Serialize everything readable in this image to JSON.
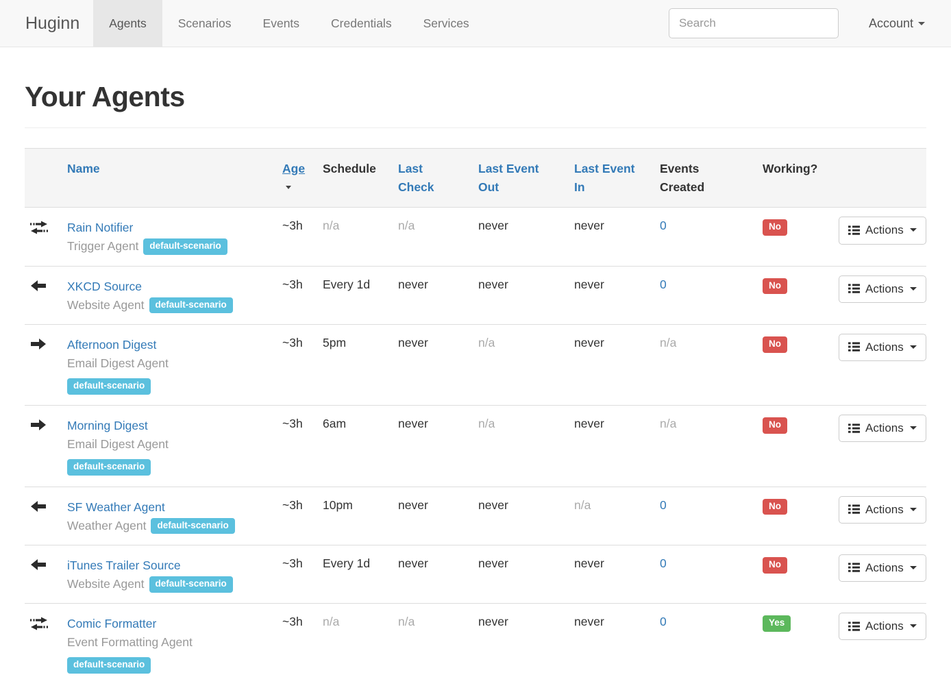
{
  "nav": {
    "brand": "Huginn",
    "items": [
      {
        "label": "Agents",
        "active": true
      },
      {
        "label": "Scenarios",
        "active": false
      },
      {
        "label": "Events",
        "active": false
      },
      {
        "label": "Credentials",
        "active": false
      },
      {
        "label": "Services",
        "active": false
      }
    ],
    "search_placeholder": "Search",
    "account_label": "Account"
  },
  "page": {
    "title": "Your Agents"
  },
  "table": {
    "headers": [
      {
        "id": "icon",
        "label": "",
        "link": false
      },
      {
        "id": "name",
        "label": "Name",
        "link": true
      },
      {
        "id": "age",
        "label": "Age",
        "link": true,
        "sorted": true
      },
      {
        "id": "schedule",
        "label": "Schedule",
        "link": false
      },
      {
        "id": "last-check",
        "label": "Last\nCheck",
        "link": true
      },
      {
        "id": "last-event-out",
        "label": "Last Event\nOut",
        "link": true
      },
      {
        "id": "last-event-in",
        "label": "Last Event\nIn",
        "link": true
      },
      {
        "id": "events-created",
        "label": "Events\nCreated",
        "link": false
      },
      {
        "id": "working",
        "label": "Working?",
        "link": false
      },
      {
        "id": "actions",
        "label": "",
        "link": false
      }
    ],
    "actions_label": "Actions",
    "rows": [
      {
        "icon": "bidirectional-arrows",
        "name": "Rain Notifier",
        "agent_type": "Trigger Agent",
        "badge": "default-scenario",
        "badge_on_new_line": false,
        "age": "~3h",
        "schedule": "n/a",
        "last_check": "n/a",
        "last_event_out": "never",
        "last_event_in": "never",
        "events_created": "0",
        "working": "No"
      },
      {
        "icon": "arrow-left",
        "name": "XKCD Source",
        "agent_type": "Website Agent",
        "badge": "default-scenario",
        "badge_on_new_line": false,
        "age": "~3h",
        "schedule": "Every 1d",
        "last_check": "never",
        "last_event_out": "never",
        "last_event_in": "never",
        "events_created": "0",
        "working": "No"
      },
      {
        "icon": "arrow-right",
        "name": "Afternoon Digest",
        "agent_type": "Email Digest Agent",
        "badge": "default-scenario",
        "badge_on_new_line": true,
        "age": "~3h",
        "schedule": "5pm",
        "last_check": "never",
        "last_event_out": "n/a",
        "last_event_in": "never",
        "events_created": "n/a",
        "working": "No"
      },
      {
        "icon": "arrow-right",
        "name": "Morning Digest",
        "agent_type": "Email Digest Agent",
        "badge": "default-scenario",
        "badge_on_new_line": true,
        "age": "~3h",
        "schedule": "6am",
        "last_check": "never",
        "last_event_out": "n/a",
        "last_event_in": "never",
        "events_created": "n/a",
        "working": "No"
      },
      {
        "icon": "arrow-left",
        "name": "SF Weather Agent",
        "agent_type": "Weather Agent",
        "badge": "default-scenario",
        "badge_on_new_line": false,
        "age": "~3h",
        "schedule": "10pm",
        "last_check": "never",
        "last_event_out": "never",
        "last_event_in": "n/a",
        "events_created": "0",
        "working": "No"
      },
      {
        "icon": "arrow-left",
        "name": "iTunes Trailer Source",
        "agent_type": "Website Agent",
        "badge": "default-scenario",
        "badge_on_new_line": false,
        "age": "~3h",
        "schedule": "Every 1d",
        "last_check": "never",
        "last_event_out": "never",
        "last_event_in": "never",
        "events_created": "0",
        "working": "No"
      },
      {
        "icon": "bidirectional-arrows",
        "name": "Comic Formatter",
        "agent_type": "Event Formatting Agent",
        "badge": "default-scenario",
        "badge_on_new_line": true,
        "age": "~3h",
        "schedule": "n/a",
        "last_check": "n/a",
        "last_event_out": "never",
        "last_event_in": "never",
        "events_created": "0",
        "working": "Yes"
      }
    ]
  },
  "colors": {
    "link_blue": "#337ab7",
    "badge_info": "#5bc0de",
    "working_no": "#d9534f",
    "working_yes": "#5cb85c",
    "navbar_bg": "#f8f8f8",
    "navbar_active_bg": "#e7e7e7"
  }
}
